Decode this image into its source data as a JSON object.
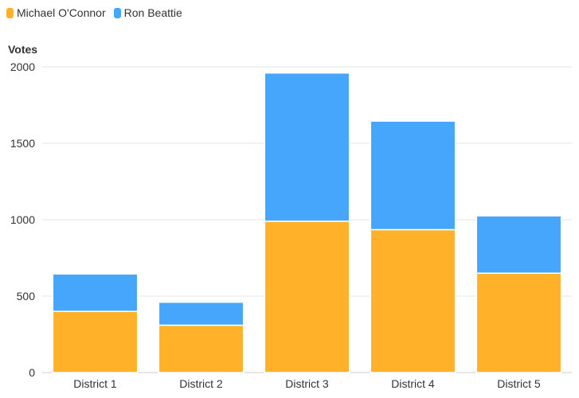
{
  "chart_data": {
    "type": "bar",
    "stacked": true,
    "categories": [
      "District 1",
      "District 2",
      "District 3",
      "District 4",
      "District 5"
    ],
    "series": [
      {
        "name": "Michael O'Connor",
        "color": "#FFB229",
        "values": [
          400,
          310,
          990,
          935,
          650
        ]
      },
      {
        "name": "Ron Beattie",
        "color": "#46A6FB",
        "values": [
          245,
          150,
          970,
          710,
          375
        ]
      }
    ],
    "ylabel": "Votes",
    "ylim": [
      0,
      2000
    ],
    "yticks": [
      0,
      500,
      1000,
      1500,
      2000
    ],
    "grid": true,
    "legend_position": "top-left"
  }
}
